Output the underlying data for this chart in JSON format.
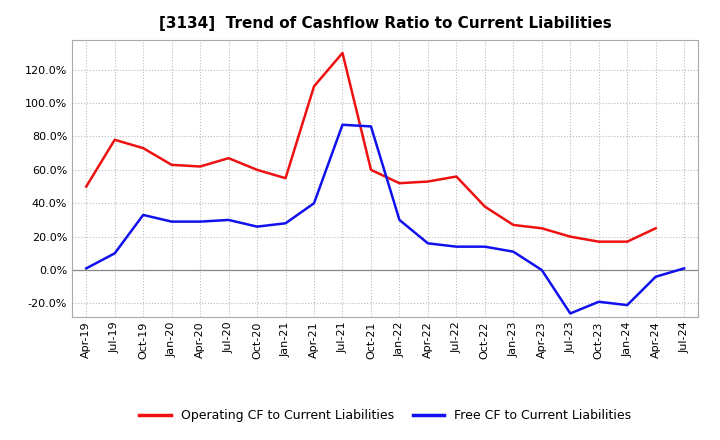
{
  "title": "[3134]  Trend of Cashflow Ratio to Current Liabilities",
  "x_labels": [
    "Apr-19",
    "Jul-19",
    "Oct-19",
    "Jan-20",
    "Apr-20",
    "Jul-20",
    "Oct-20",
    "Jan-21",
    "Apr-21",
    "Jul-21",
    "Oct-21",
    "Jan-22",
    "Apr-22",
    "Jul-22",
    "Oct-22",
    "Jan-23",
    "Apr-23",
    "Jul-23",
    "Oct-23",
    "Jan-24",
    "Apr-24",
    "Jul-24"
  ],
  "operating_cf": [
    0.5,
    0.78,
    0.73,
    0.63,
    0.62,
    0.67,
    0.6,
    0.55,
    1.1,
    1.3,
    0.6,
    0.52,
    0.53,
    0.56,
    0.38,
    0.27,
    0.25,
    0.2,
    0.17,
    0.17,
    0.25,
    null
  ],
  "free_cf": [
    0.01,
    0.1,
    0.33,
    0.29,
    0.29,
    0.3,
    0.26,
    0.28,
    0.4,
    0.87,
    0.86,
    0.3,
    0.16,
    0.14,
    0.14,
    0.11,
    0.0,
    -0.26,
    -0.19,
    -0.21,
    -0.04,
    0.01
  ],
  "ylim": [
    -0.28,
    1.38
  ],
  "yticks": [
    -0.2,
    0.0,
    0.2,
    0.4,
    0.6,
    0.8,
    1.0,
    1.2
  ],
  "operating_color": "#EE1111",
  "free_color": "#1111EE",
  "grid_color": "#BBBBBB",
  "background_color": "#FFFFFF",
  "legend_operating": "Operating CF to Current Liabilities",
  "legend_free": "Free CF to Current Liabilities",
  "title_fontsize": 11,
  "tick_fontsize": 8
}
